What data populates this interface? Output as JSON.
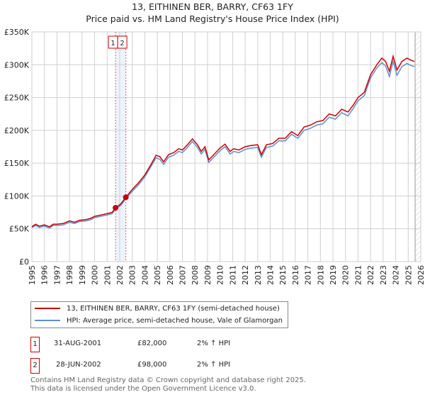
{
  "chart_data": {
    "type": "line",
    "title": "13, EITHINEN BER, BARRY, CF63 1FY",
    "subtitle": "Price paid vs. HM Land Registry's House Price Index (HPI)",
    "xlim": [
      1995,
      2026
    ],
    "ylim": [
      0,
      350000
    ],
    "x_ticks": [
      "1995",
      "1996",
      "1997",
      "1998",
      "1999",
      "2000",
      "2001",
      "2002",
      "2003",
      "2004",
      "2005",
      "2006",
      "2007",
      "2008",
      "2009",
      "2010",
      "2011",
      "2012",
      "2013",
      "2014",
      "2015",
      "2016",
      "2017",
      "2018",
      "2019",
      "2020",
      "2021",
      "2022",
      "2023",
      "2024",
      "2025",
      "2026"
    ],
    "y_ticks": [
      {
        "v": 0,
        "label": "£0"
      },
      {
        "v": 50000,
        "label": "£50K"
      },
      {
        "v": 100000,
        "label": "£100K"
      },
      {
        "v": 150000,
        "label": "£150K"
      },
      {
        "v": 200000,
        "label": "£200K"
      },
      {
        "v": 250000,
        "label": "£250K"
      },
      {
        "v": 300000,
        "label": "£300K"
      },
      {
        "v": 350000,
        "label": "£350K"
      }
    ],
    "grid": true,
    "series": [
      {
        "name": "13, EITHINEN BER, BARRY, CF63 1FY (semi-detached house)",
        "color": "#cc0000",
        "x": [
          1995,
          1995.3,
          1995.6,
          1996,
          1996.4,
          1996.7,
          1997,
          1997.5,
          1998,
          1998.4,
          1998.8,
          1999.3,
          1999.7,
          2000,
          2000.5,
          2001,
          2001.4,
          2001.67,
          2002.1,
          2002.49,
          2003,
          2003.5,
          2004,
          2004.5,
          2004.9,
          2005.2,
          2005.5,
          2005.9,
          2006.3,
          2006.7,
          2007,
          2007.4,
          2007.8,
          2008.2,
          2008.5,
          2008.8,
          2009.1,
          2009.5,
          2010,
          2010.4,
          2010.8,
          2011.1,
          2011.5,
          2012,
          2012.5,
          2013,
          2013.3,
          2013.7,
          2014.2,
          2014.7,
          2015.2,
          2015.7,
          2016.2,
          2016.7,
          2017.2,
          2017.7,
          2018.2,
          2018.7,
          2019.2,
          2019.7,
          2020.2,
          2020.6,
          2021,
          2021.5,
          2022,
          2022.5,
          2022.9,
          2023.2,
          2023.5,
          2023.8,
          2024.1,
          2024.5,
          2024.9,
          2025.2,
          2025.5
        ],
        "y": [
          53000,
          57000,
          54000,
          56000,
          53000,
          57000,
          57000,
          58000,
          62000,
          60000,
          63000,
          64000,
          66000,
          69000,
          71000,
          73000,
          75000,
          82000,
          88000,
          98000,
          110000,
          120000,
          132000,
          148000,
          162000,
          160000,
          152000,
          163000,
          166000,
          172000,
          170000,
          178000,
          187000,
          178000,
          168000,
          175000,
          155000,
          163000,
          173000,
          179000,
          168000,
          172000,
          170000,
          175000,
          177000,
          178000,
          163000,
          178000,
          180000,
          188000,
          188000,
          198000,
          192000,
          205000,
          208000,
          213000,
          215000,
          225000,
          222000,
          232000,
          228000,
          238000,
          250000,
          258000,
          285000,
          300000,
          310000,
          305000,
          290000,
          313000,
          292000,
          305000,
          310000,
          307000,
          305000
        ]
      },
      {
        "name": "HPI: Average price, semi-detached house, Vale of Glamorgan",
        "color": "#5b8fd4",
        "x": [
          1995,
          1995.3,
          1995.6,
          1996,
          1996.4,
          1996.7,
          1997,
          1997.5,
          1998,
          1998.4,
          1998.8,
          1999.3,
          1999.7,
          2000,
          2000.5,
          2001,
          2001.4,
          2001.67,
          2002.1,
          2002.49,
          2003,
          2003.5,
          2004,
          2004.5,
          2004.9,
          2005.2,
          2005.5,
          2005.9,
          2006.3,
          2006.7,
          2007,
          2007.4,
          2007.8,
          2008.2,
          2008.5,
          2008.8,
          2009.1,
          2009.5,
          2010,
          2010.4,
          2010.8,
          2011.1,
          2011.5,
          2012,
          2012.5,
          2013,
          2013.3,
          2013.7,
          2014.2,
          2014.7,
          2015.2,
          2015.7,
          2016.2,
          2016.7,
          2017.2,
          2017.7,
          2018.2,
          2018.7,
          2019.2,
          2019.7,
          2020.2,
          2020.6,
          2021,
          2021.5,
          2022,
          2022.5,
          2022.9,
          2023.2,
          2023.5,
          2023.8,
          2024.1,
          2024.5,
          2024.9,
          2025.2,
          2025.5
        ],
        "y": [
          52000,
          55000,
          52000,
          54000,
          51000,
          55000,
          55000,
          56000,
          60000,
          58000,
          61000,
          62000,
          64000,
          67000,
          69000,
          71000,
          73000,
          80000,
          86000,
          96000,
          107000,
          117000,
          129000,
          145000,
          158000,
          156000,
          148000,
          159000,
          162000,
          168000,
          166000,
          174000,
          183000,
          174000,
          164000,
          171000,
          151000,
          159000,
          169000,
          175000,
          164000,
          168000,
          166000,
          171000,
          173000,
          174000,
          159000,
          174000,
          176000,
          184000,
          184000,
          194000,
          188000,
          200000,
          203000,
          208000,
          210000,
          220000,
          217000,
          227000,
          222000,
          233000,
          245000,
          253000,
          280000,
          295000,
          303000,
          298000,
          282000,
          305000,
          284000,
          297000,
          302000,
          299000,
          297000
        ]
      }
    ],
    "transactions": [
      {
        "label": "1",
        "x": 2001.67,
        "y": 82000
      },
      {
        "label": "2",
        "x": 2002.49,
        "y": 98000
      }
    ],
    "legend_placement": "bottom"
  },
  "legend": {
    "red": "13, EITHINEN BER, BARRY, CF63 1FY (semi-detached house)",
    "blue": "HPI: Average price, semi-detached house, Vale of Glamorgan"
  },
  "table": [
    {
      "num": "1",
      "date": "31-AUG-2001",
      "price": "£82,000",
      "hpi": "2% ↑ HPI"
    },
    {
      "num": "2",
      "date": "28-JUN-2002",
      "price": "£98,000",
      "hpi": "2% ↑ HPI"
    }
  ],
  "footer": {
    "line1": "Contains HM Land Registry data © Crown copyright and database right 2025.",
    "line2": "This data is licensed under the Open Government Licence v3.0."
  }
}
